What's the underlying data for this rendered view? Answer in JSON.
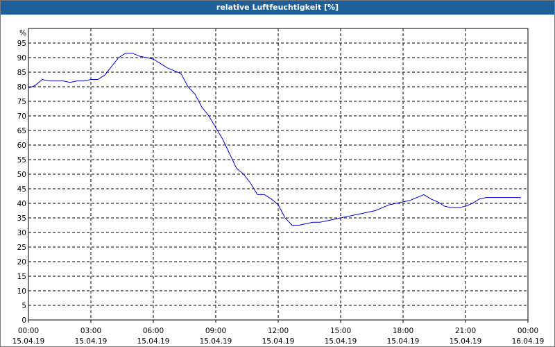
{
  "window": {
    "title": "relative Luftfeuchtigkeit [%]"
  },
  "chart_data": {
    "type": "line",
    "title": "relative Luftfeuchtigkeit [%]",
    "ylabel": "%",
    "xlabel": "",
    "ylim": [
      0,
      100
    ],
    "yticks": [
      0,
      5,
      10,
      15,
      20,
      25,
      30,
      35,
      40,
      45,
      50,
      55,
      60,
      65,
      70,
      75,
      80,
      85,
      90,
      95
    ],
    "xlim": [
      "2019-04-15 00:00",
      "2019-04-16 00:00"
    ],
    "xticks": [
      {
        "time": "00:00",
        "date": "15.04.19"
      },
      {
        "time": "03:00",
        "date": "15.04.19"
      },
      {
        "time": "06:00",
        "date": "15.04.19"
      },
      {
        "time": "09:00",
        "date": "15.04.19"
      },
      {
        "time": "12:00",
        "date": "15.04.19"
      },
      {
        "time": "15:00",
        "date": "15.04.19"
      },
      {
        "time": "18:00",
        "date": "15.04.19"
      },
      {
        "time": "21:00",
        "date": "15.04.19"
      },
      {
        "time": "00:00",
        "date": "16.04.19"
      }
    ],
    "grid": true,
    "line_color": "#0000cc",
    "series": [
      {
        "x": [
          "2019-04-15 00:00",
          "2019-04-15 00:20",
          "2019-04-15 00:40",
          "2019-04-15 01:00",
          "2019-04-15 01:20",
          "2019-04-15 01:40",
          "2019-04-15 02:00",
          "2019-04-15 02:20",
          "2019-04-15 02:40",
          "2019-04-15 03:00",
          "2019-04-15 03:20",
          "2019-04-15 03:40",
          "2019-04-15 04:00",
          "2019-04-15 04:20",
          "2019-04-15 04:40",
          "2019-04-15 05:00",
          "2019-04-15 05:20",
          "2019-04-15 05:40",
          "2019-04-15 06:00",
          "2019-04-15 06:20",
          "2019-04-15 06:40",
          "2019-04-15 07:00",
          "2019-04-15 07:20",
          "2019-04-15 07:40",
          "2019-04-15 08:00",
          "2019-04-15 08:20",
          "2019-04-15 08:40",
          "2019-04-15 09:00",
          "2019-04-15 09:20",
          "2019-04-15 09:40",
          "2019-04-15 10:00",
          "2019-04-15 10:20",
          "2019-04-15 10:40",
          "2019-04-15 11:00",
          "2019-04-15 11:20",
          "2019-04-15 11:40",
          "2019-04-15 12:00",
          "2019-04-15 12:20",
          "2019-04-15 12:40",
          "2019-04-15 13:00",
          "2019-04-15 13:20",
          "2019-04-15 13:40",
          "2019-04-15 14:00",
          "2019-04-15 14:20",
          "2019-04-15 14:40",
          "2019-04-15 15:00",
          "2019-04-15 15:20",
          "2019-04-15 15:40",
          "2019-04-15 16:00",
          "2019-04-15 16:20",
          "2019-04-15 16:40",
          "2019-04-15 17:00",
          "2019-04-15 17:20",
          "2019-04-15 17:40",
          "2019-04-15 18:00",
          "2019-04-15 18:20",
          "2019-04-15 18:40",
          "2019-04-15 19:00",
          "2019-04-15 19:20",
          "2019-04-15 19:40",
          "2019-04-15 20:00",
          "2019-04-15 20:20",
          "2019-04-15 20:40",
          "2019-04-15 21:00",
          "2019-04-15 21:20",
          "2019-04-15 21:40",
          "2019-04-15 22:00",
          "2019-04-15 22:20",
          "2019-04-15 22:40",
          "2019-04-15 23:00",
          "2019-04-15 23:20",
          "2019-04-15 23:40"
        ],
        "y": [
          79.5,
          80.5,
          82.5,
          82,
          82,
          82,
          81.5,
          82,
          82,
          82.5,
          82.5,
          84,
          87,
          90,
          91.5,
          91.5,
          90.5,
          90,
          89.5,
          88,
          86.5,
          85.5,
          84.5,
          80,
          77.5,
          73,
          70,
          66,
          62,
          57,
          52,
          50,
          47,
          43,
          43,
          41.5,
          39.5,
          35,
          32.5,
          32.5,
          33,
          33.5,
          33.5,
          34,
          34.5,
          35,
          35.5,
          36,
          36.5,
          37,
          37.5,
          38.5,
          39.5,
          40,
          40.5,
          41,
          42,
          43,
          41.5,
          40.5,
          39,
          38.5,
          38.5,
          39,
          40,
          41.5,
          42,
          42,
          42,
          42,
          42,
          42
        ]
      }
    ]
  }
}
